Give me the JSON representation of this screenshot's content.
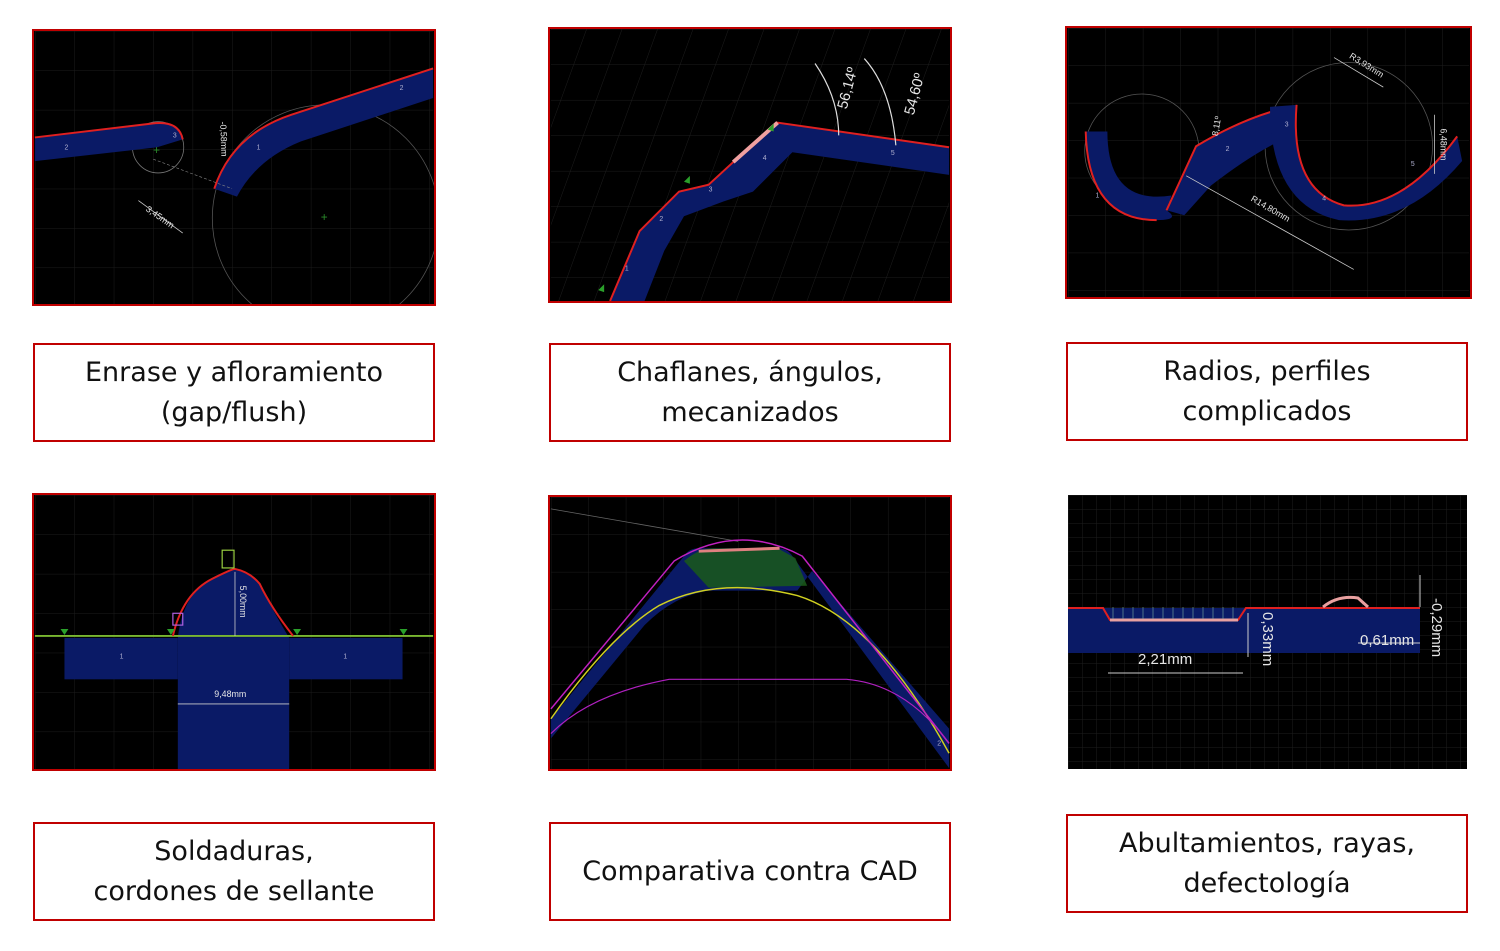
{
  "panels": {
    "p1": {
      "gap": "-0,58mm",
      "offset": "3,45mm",
      "seg1": "1",
      "seg2": "2",
      "seg3": "3",
      "seg4": "2"
    },
    "p2": {
      "angle1": "56,14º",
      "angle2": "54,60º",
      "seg1": "1",
      "seg2": "2",
      "seg3": "3",
      "seg4": "4",
      "seg5": "5"
    },
    "p3": {
      "r1": "R3,93mm",
      "r2": "R14,80mm",
      "ang": "8,11º",
      "dist": "6,48mm",
      "seg1": "1",
      "seg2": "2",
      "seg3": "3",
      "seg4": "4",
      "seg5": "5"
    },
    "p4": {
      "height": "5,00mm",
      "width": "9,48mm",
      "seg_left": "1",
      "seg_right": "1"
    },
    "p5": {
      "seg": "2"
    },
    "p6": {
      "d1": "2,21mm",
      "d2": "0,33mm",
      "d3": "0,61mm",
      "d4": "-0,29mm"
    }
  },
  "captions": {
    "c1": {
      "line1": "Enrase y afloramiento",
      "line2": "(gap/flush)"
    },
    "c2": {
      "line1": "Chaflanes, ángulos,",
      "line2": "mecanizados"
    },
    "c3": {
      "line1": "Radios, perfiles",
      "line2": "complicados"
    },
    "c4": {
      "line1": "Soldaduras,",
      "line2": "cordones de sellante"
    },
    "c5": {
      "line1": "Comparativa contra CAD"
    },
    "c6": {
      "line1": "Abultamientos, rayas,",
      "line2": "defectología"
    }
  },
  "colors": {
    "border": "#c00000",
    "profile_fill": "#0a1a66",
    "scan_line": "#e02020",
    "grid": "#2a2a2a"
  }
}
